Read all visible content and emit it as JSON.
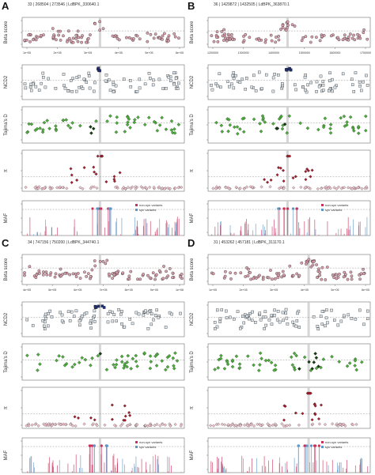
{
  "panels": [
    {
      "letter": "A",
      "title": "33 | 268504 | 273546 | LdBPK_330640.1",
      "x_ticks": [
        "1e+05",
        "2e+05",
        "3e+05",
        "4e+05",
        "5e+05",
        "6e+05"
      ],
      "legend": [
        "non-syn variants",
        "syn variants"
      ]
    },
    {
      "letter": "B",
      "title": "36 | 1429872 | 1432505 | LdBPK_363870.1",
      "x_ticks": [
        "1200000",
        "1300000",
        "1400000",
        "1500000",
        "1600000",
        "1700000"
      ],
      "legend": [
        "non-syn variants",
        "syn variants"
      ]
    },
    {
      "letter": "C",
      "title": "34 | 747156 | 750200 | LdBPK_344740.1",
      "x_ticks": [
        "4e+05",
        "5e+05",
        "6e+05",
        "7e+05",
        "8e+05",
        "9e+05",
        "1e+06"
      ],
      "legend": [
        "non-syn variants",
        "syn variants"
      ]
    },
    {
      "letter": "D",
      "title": "31 | 453262 | 457181 | LdBPK_311170.1",
      "x_ticks": [
        "1e+05",
        "2e+05",
        "3e+05",
        "4e+05",
        "5e+05",
        "6e+05"
      ],
      "legend": [
        "non-syn variants",
        "syn variants"
      ]
    }
  ],
  "row_labels": [
    "Beta score",
    "NCD2",
    "Tajima's D",
    "π",
    "MAF"
  ],
  "colors": {
    "beta": "#d9a0ad",
    "ncd2": "#dbe4ea",
    "ncd2_high": "#1f2f7a",
    "tajima": "#4cae3a",
    "pi": "#a51d2d",
    "nonsyn": "#c8325a",
    "syn": "#5a96c8",
    "highlight": "#cccccc"
  },
  "chart_data": [
    {
      "type": "scatter",
      "panel": "A",
      "title": "33 | 268504 | 273546 | LdBPK_330640.1",
      "xlabel": "",
      "ylabel": "Beta score",
      "x": [
        "1e+05",
        "2e+05",
        "3e+05",
        "4e+05",
        "5e+05",
        "6e+05"
      ],
      "y_ticks": [
        "0.0",
        "1.0",
        "2.0"
      ]
    },
    {
      "type": "scatter",
      "panel": "B",
      "title": "36 | 1429872 | 1432505 | LdBPK_363870.1",
      "xlabel": "",
      "ylabel": "Beta score",
      "x": [
        "1200000",
        "1300000",
        "1400000",
        "1500000",
        "1600000",
        "1700000"
      ],
      "y_ticks": [
        "0.0",
        "1.0",
        "2.0"
      ]
    },
    {
      "type": "scatter",
      "panel": "C",
      "title": "34 | 747156 | 750200 | LdBPK_344740.1",
      "xlabel": "",
      "ylabel": "Beta score",
      "x": [
        "4e+05",
        "5e+05",
        "6e+05",
        "7e+05",
        "8e+05",
        "9e+05",
        "1e+06"
      ],
      "y_ticks": [
        "0.0",
        "1.0",
        "2.0"
      ]
    },
    {
      "type": "scatter",
      "panel": "D",
      "title": "31 | 453262 | 457181 | LdBPK_311170.1",
      "xlabel": "",
      "ylabel": "Beta score",
      "x": [
        "1e+05",
        "2e+05",
        "3e+05",
        "4e+05",
        "5e+05",
        "6e+05"
      ],
      "y_ticks": [
        "0.0",
        "1.0",
        "2.0"
      ]
    }
  ]
}
